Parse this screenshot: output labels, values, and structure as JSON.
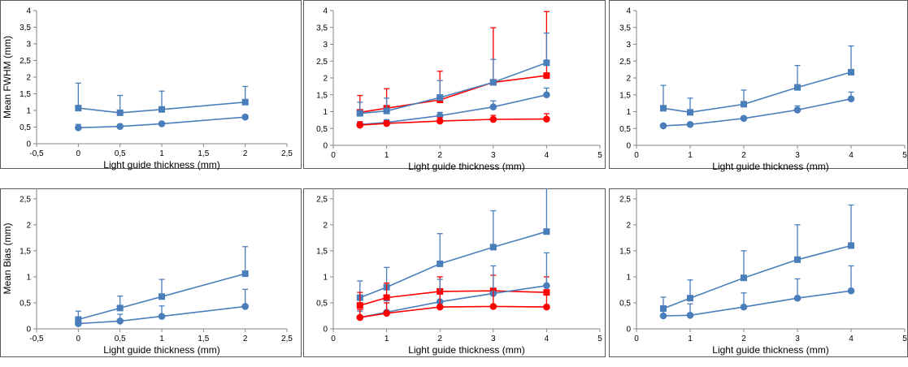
{
  "colors": {
    "blue": "#4a7ebb",
    "red": "#ff0000",
    "axis": "#868686",
    "frame": "#595959"
  },
  "chart_data": [
    {
      "type": "line",
      "row": "top",
      "col": 0,
      "xlabel": "Light guide thickness (mm)",
      "ylabel": "Mean FWHM (mm)",
      "xlim": [
        -0.5,
        2.5
      ],
      "ylim": [
        0,
        4
      ],
      "x_ticks": [
        "-0,5",
        "0",
        "0,5",
        "1",
        "1,5",
        "2",
        "2,5"
      ],
      "y_ticks": [
        "0",
        "0,5",
        "1",
        "1,5",
        "2",
        "2,5",
        "3",
        "3,5",
        "4"
      ],
      "grid": false,
      "legend": "none",
      "series": [
        {
          "color": "blue",
          "marker": "square",
          "x": [
            0,
            0.5,
            1,
            2
          ],
          "y": [
            1.07,
            0.93,
            1.03,
            1.25
          ],
          "err": [
            0.75,
            0.52,
            0.55,
            0.47
          ]
        },
        {
          "color": "blue",
          "marker": "circle",
          "x": [
            0,
            0.5,
            1,
            2
          ],
          "y": [
            0.48,
            0.52,
            0.6,
            0.8
          ],
          "err": [
            0.1,
            0.05,
            0.05,
            0.05
          ]
        }
      ]
    },
    {
      "type": "line",
      "row": "top",
      "col": 1,
      "xlabel": "Light guide thickness (mm)",
      "ylabel": "",
      "xlim": [
        0,
        5
      ],
      "ylim": [
        0,
        4
      ],
      "x_ticks": [
        "0",
        "1",
        "2",
        "3",
        "4",
        "5"
      ],
      "y_ticks": [
        "0",
        "0,5",
        "1",
        "1,5",
        "2",
        "2,5",
        "3",
        "3,5",
        "4"
      ],
      "grid": false,
      "legend": "none",
      "series": [
        {
          "color": "red",
          "marker": "square",
          "x": [
            0.5,
            1,
            2,
            3,
            4
          ],
          "y": [
            0.98,
            1.1,
            1.35,
            1.87,
            2.07
          ],
          "err": [
            0.5,
            0.58,
            0.85,
            1.62,
            1.9
          ]
        },
        {
          "color": "blue",
          "marker": "square",
          "x": [
            0.5,
            1,
            2,
            3,
            4
          ],
          "y": [
            0.95,
            1.02,
            1.42,
            1.87,
            2.45
          ],
          "err": [
            0.33,
            0.38,
            0.5,
            0.68,
            0.88
          ]
        },
        {
          "color": "blue",
          "marker": "circle",
          "x": [
            0.5,
            1,
            2,
            3,
            4
          ],
          "y": [
            0.62,
            0.68,
            0.88,
            1.14,
            1.5
          ],
          "err": [
            0.08,
            0.08,
            0.1,
            0.18,
            0.2
          ]
        },
        {
          "color": "red",
          "marker": "circle",
          "x": [
            0.5,
            1,
            2,
            3,
            4
          ],
          "y": [
            0.6,
            0.65,
            0.72,
            0.77,
            0.78
          ],
          "err": [
            0.1,
            0.08,
            0.1,
            0.12,
            0.16
          ]
        }
      ]
    },
    {
      "type": "line",
      "row": "top",
      "col": 2,
      "xlabel": "Light guide thickness (mm)",
      "ylabel": "",
      "xlim": [
        0,
        5
      ],
      "ylim": [
        0,
        4
      ],
      "x_ticks": [
        "0",
        "1",
        "2",
        "3",
        "4",
        "5"
      ],
      "y_ticks": [
        "0",
        "0,5",
        "1",
        "1,5",
        "2",
        "2,5",
        "3",
        "3,5",
        "4"
      ],
      "grid": false,
      "legend": "none",
      "series": [
        {
          "color": "blue",
          "marker": "square",
          "x": [
            0.5,
            1,
            2,
            3,
            4
          ],
          "y": [
            1.1,
            0.98,
            1.22,
            1.72,
            2.17
          ],
          "err": [
            0.68,
            0.42,
            0.42,
            0.65,
            0.78
          ]
        },
        {
          "color": "blue",
          "marker": "circle",
          "x": [
            0.5,
            1,
            2,
            3,
            4
          ],
          "y": [
            0.58,
            0.62,
            0.8,
            1.05,
            1.38
          ],
          "err": [
            0.05,
            0.05,
            0.05,
            0.12,
            0.2
          ]
        }
      ]
    },
    {
      "type": "line",
      "row": "bottom",
      "col": 0,
      "xlabel": "Light guide thickness (mm)",
      "ylabel": "Mean Bias (mm)",
      "xlim": [
        -0.5,
        2.5
      ],
      "ylim": [
        0,
        2.7
      ],
      "x_ticks": [
        "-0,5",
        "0",
        "0,5",
        "1",
        "1,5",
        "2",
        "2,5"
      ],
      "y_ticks": [
        "0",
        "0,5",
        "1",
        "1,5",
        "2",
        "2,5"
      ],
      "grid": false,
      "legend": "none",
      "series": [
        {
          "color": "blue",
          "marker": "square",
          "x": [
            0,
            0.5,
            1,
            2
          ],
          "y": [
            0.18,
            0.4,
            0.62,
            1.06
          ],
          "err": [
            0.16,
            0.23,
            0.33,
            0.52
          ]
        },
        {
          "color": "blue",
          "marker": "circle",
          "x": [
            0,
            0.5,
            1,
            2
          ],
          "y": [
            0.1,
            0.15,
            0.24,
            0.43
          ],
          "err": [
            0.12,
            0.13,
            0.2,
            0.33
          ]
        }
      ]
    },
    {
      "type": "line",
      "row": "bottom",
      "col": 1,
      "xlabel": "Light guide thickness (mm)",
      "ylabel": "",
      "xlim": [
        0,
        5
      ],
      "ylim": [
        0,
        2.7
      ],
      "x_ticks": [
        "0",
        "1",
        "2",
        "3",
        "4",
        "5"
      ],
      "y_ticks": [
        "0",
        "0,5",
        "1",
        "1,5",
        "2",
        "2,5"
      ],
      "grid": false,
      "legend": "none",
      "series": [
        {
          "color": "blue",
          "marker": "square",
          "x": [
            0.5,
            1,
            2,
            3,
            4
          ],
          "y": [
            0.6,
            0.8,
            1.25,
            1.57,
            1.87
          ],
          "err": [
            0.32,
            0.38,
            0.58,
            0.7,
            0.85
          ]
        },
        {
          "color": "red",
          "marker": "square",
          "x": [
            0.5,
            1,
            2,
            3,
            4
          ],
          "y": [
            0.45,
            0.6,
            0.72,
            0.73,
            0.7
          ],
          "err": [
            0.25,
            0.28,
            0.28,
            0.3,
            0.3
          ]
        },
        {
          "color": "blue",
          "marker": "circle",
          "x": [
            0.5,
            1,
            2,
            3,
            4
          ],
          "y": [
            0.22,
            0.32,
            0.52,
            0.68,
            0.83
          ],
          "err": [
            0.12,
            0.22,
            0.43,
            0.53,
            0.63
          ]
        },
        {
          "color": "red",
          "marker": "circle",
          "x": [
            0.5,
            1,
            2,
            3,
            4
          ],
          "y": [
            0.22,
            0.3,
            0.42,
            0.43,
            0.42
          ],
          "err": [
            0.15,
            0.2,
            0.3,
            0.33,
            0.3
          ]
        }
      ]
    },
    {
      "type": "line",
      "row": "bottom",
      "col": 2,
      "xlabel": "Light guide thickness (mm)",
      "ylabel": "",
      "xlim": [
        0,
        5
      ],
      "ylim": [
        0,
        2.7
      ],
      "x_ticks": [
        "0",
        "1",
        "2",
        "3",
        "4",
        "5"
      ],
      "y_ticks": [
        "0",
        "0,5",
        "1",
        "1,5",
        "2",
        "2,5"
      ],
      "grid": false,
      "legend": "none",
      "series": [
        {
          "color": "blue",
          "marker": "square",
          "x": [
            0.5,
            1,
            2,
            3,
            4
          ],
          "y": [
            0.39,
            0.59,
            0.98,
            1.33,
            1.6
          ],
          "err": [
            0.22,
            0.35,
            0.52,
            0.67,
            0.78
          ]
        },
        {
          "color": "blue",
          "marker": "circle",
          "x": [
            0.5,
            1,
            2,
            3,
            4
          ],
          "y": [
            0.25,
            0.26,
            0.42,
            0.59,
            0.73
          ],
          "err": [
            0.18,
            0.22,
            0.27,
            0.37,
            0.48
          ]
        }
      ]
    }
  ]
}
